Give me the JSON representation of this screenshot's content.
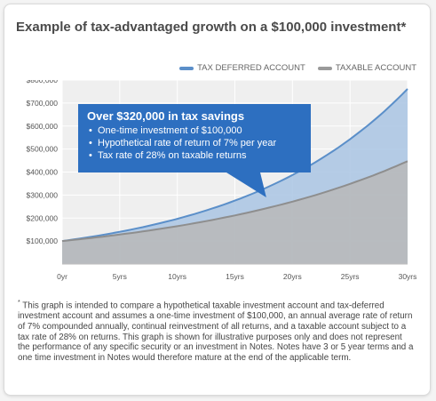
{
  "title": "Example of tax-advantaged growth on a $100,000 investment",
  "title_marker": "*",
  "legend": [
    {
      "label": "TAX DEFERRED ACCOUNT",
      "color": "#5b8fc9"
    },
    {
      "label": "TAXABLE ACCOUNT",
      "color": "#9a9a9a"
    }
  ],
  "callout": {
    "heading": "Over $320,000 in tax savings",
    "bullets": [
      "One-time investment of $100,000",
      "Hypothetical rate of return of 7% per year",
      "Tax rate of 28% on taxable returns"
    ],
    "color": "#2d6fc0"
  },
  "chart_data": {
    "type": "area",
    "x": [
      0,
      5,
      10,
      15,
      20,
      25,
      30
    ],
    "xticklabels": [
      "0yr",
      "5yrs",
      "10yrs",
      "15yrs",
      "20yrs",
      "25yrs",
      "30yrs"
    ],
    "yticks": [
      100000,
      200000,
      300000,
      400000,
      500000,
      600000,
      700000,
      800000
    ],
    "yticklabels": [
      "$100,000",
      "$200,000",
      "$300,000",
      "$400,000",
      "$500,000",
      "$600,000",
      "$700,000",
      "$800,000"
    ],
    "ylim": [
      0,
      800000
    ],
    "xlim": [
      0,
      30
    ],
    "grid": true,
    "series": [
      {
        "name": "TAX DEFERRED ACCOUNT",
        "color": "#5b8fc9",
        "fill": "#a9c4e3",
        "values": [
          100000,
          140255,
          196715,
          275903,
          386968,
          542743,
          761226
        ]
      },
      {
        "name": "TAXABLE ACCOUNT",
        "color": "#8e8e8e",
        "fill": "#b8b8b8",
        "values": [
          100000,
          128362,
          164768,
          211501,
          271488,
          348488,
          447326
        ]
      }
    ]
  },
  "footnote_marker": "*",
  "footnote": "This graph is intended to compare a hypothetical taxable investment account and tax-deferred investment account and assumes a one-time investment of $100,000, an annual average rate of return of 7% compounded annually, continual reinvestment of all returns, and a taxable account subject to a tax rate of 28% on returns. This graph is shown for illustrative purposes only and does not represent the performance of any specific security or an investment in Notes. Notes have 3 or 5 year terms and a one time investment in Notes would therefore mature at the end of the applicable term."
}
